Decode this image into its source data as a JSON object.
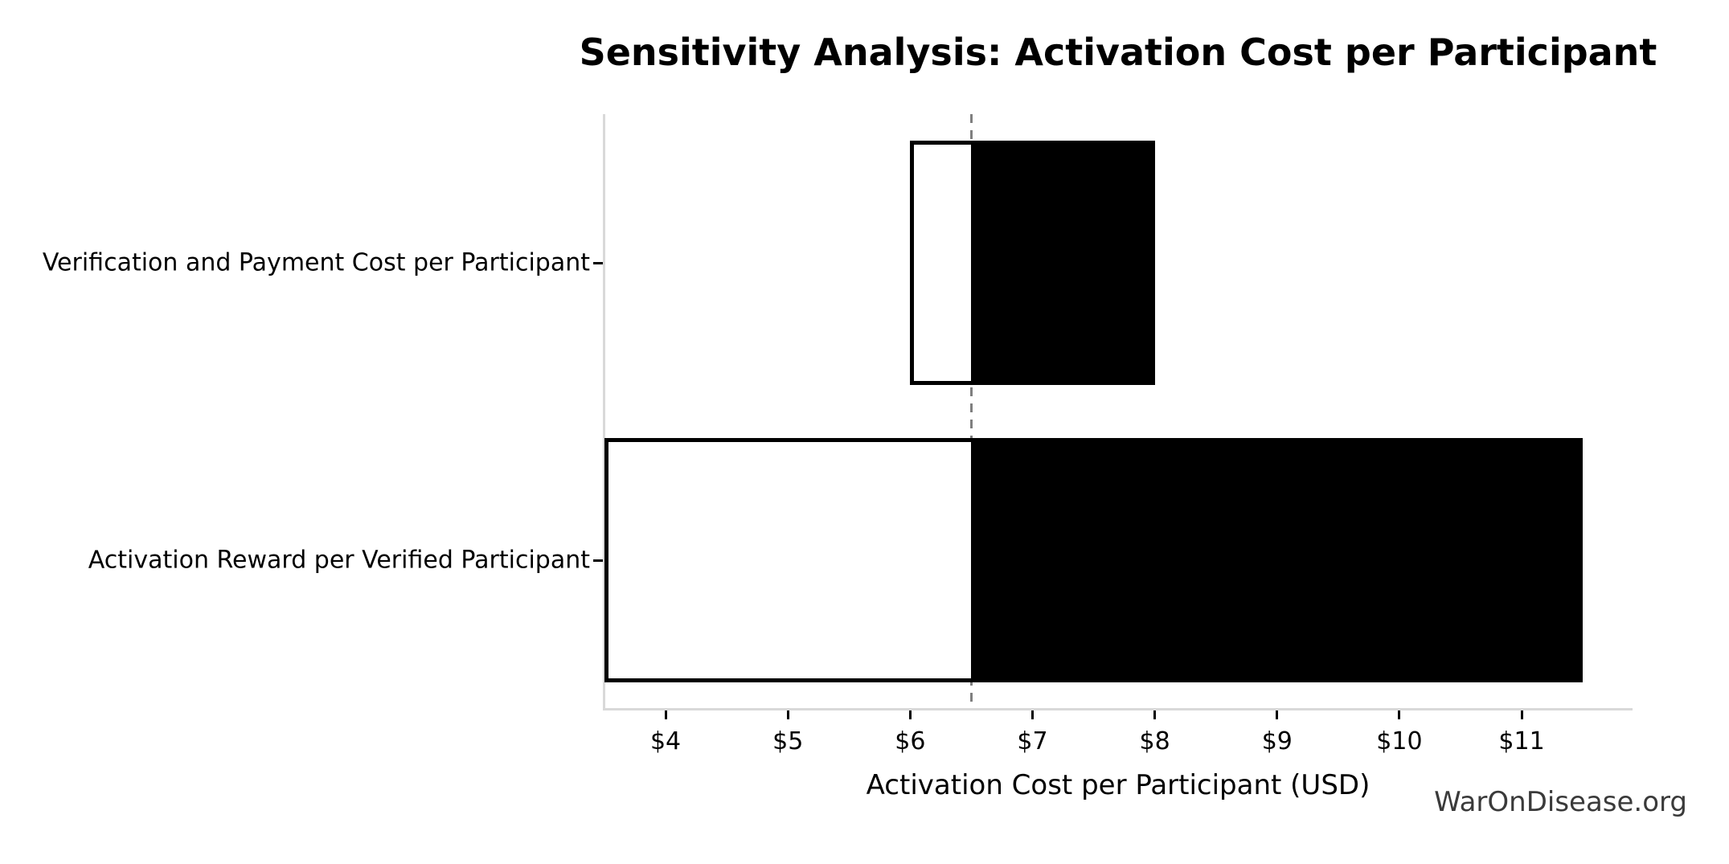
{
  "chart_data": {
    "type": "bar",
    "orientation": "horizontal",
    "variant": "tornado-sensitivity",
    "title": "Sensitivity Analysis: Activation Cost per Participant",
    "xlabel": "Activation Cost per Participant (USD)",
    "ylabel": "",
    "baseline": 6.5,
    "xlim": [
      3.5,
      11.9
    ],
    "grid": false,
    "legend": null,
    "categories": [
      "Verification and Payment Cost per Participant",
      "Activation Reward per Verified Participant"
    ],
    "bars": [
      {
        "label": "Verification and Payment Cost per Participant",
        "low": 6.0,
        "high": 8.0
      },
      {
        "label": "Activation Reward per Verified Participant",
        "low": 3.5,
        "high": 11.5
      }
    ],
    "xticks": [
      {
        "value": 4,
        "label": "$4"
      },
      {
        "value": 5,
        "label": "$5"
      },
      {
        "value": 6,
        "label": "$6"
      },
      {
        "value": 7,
        "label": "$7"
      },
      {
        "value": 8,
        "label": "$8"
      },
      {
        "value": 9,
        "label": "$9"
      },
      {
        "value": 10,
        "label": "$10"
      },
      {
        "value": 11,
        "label": "$11"
      }
    ]
  },
  "watermark": "WarOnDisease.org",
  "colors": {
    "bar_fill": "#000000",
    "bar_under_fill": "#ffffff",
    "bar_edge": "#000000",
    "baseline_line": "#7f7f7f",
    "spine": "#d9d9d9",
    "tick": "#000000",
    "text": "#000000",
    "watermark_text": "#3a3a3a",
    "background": "#ffffff"
  }
}
